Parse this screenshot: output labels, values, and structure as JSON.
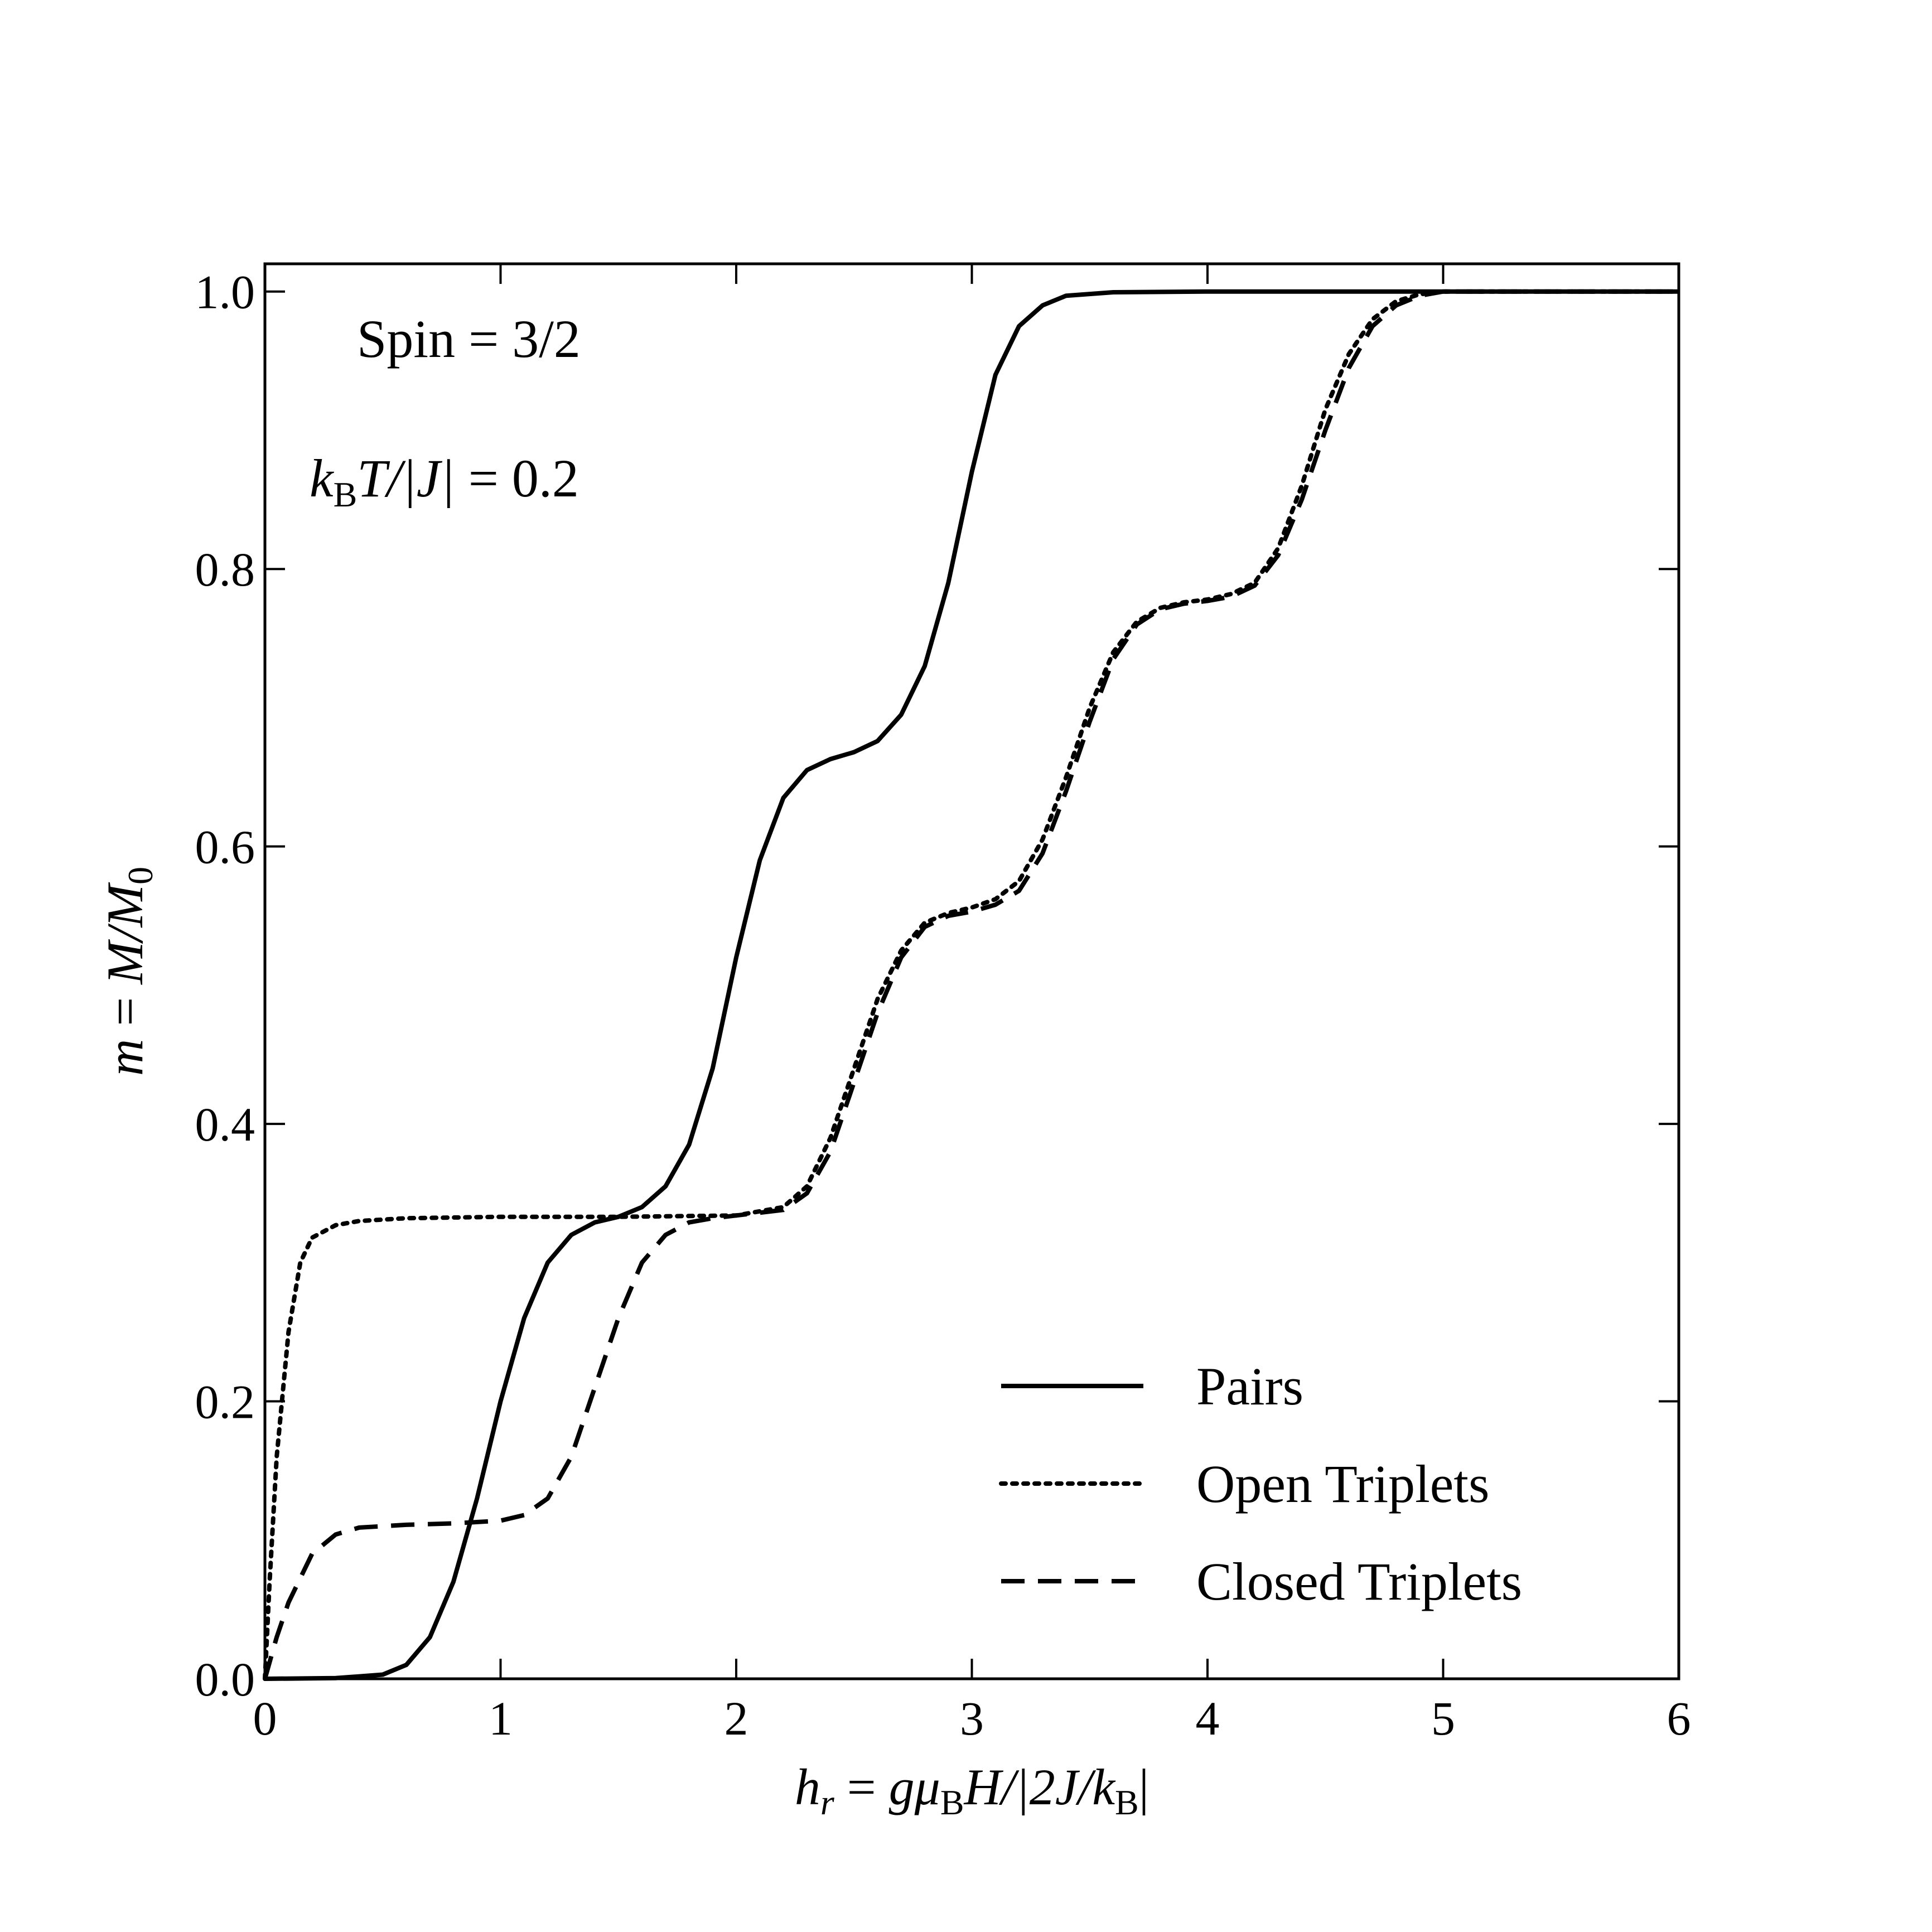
{
  "chart_data": {
    "type": "line",
    "title": "",
    "xlabel": "h_r = gμ_B H/|2J/k_B|",
    "ylabel": "m = M/M_0",
    "xlim": [
      0,
      6
    ],
    "ylim": [
      0,
      1.02
    ],
    "xticks": [
      "0",
      "1",
      "2",
      "3",
      "4",
      "5",
      "6"
    ],
    "yticks": [
      "0.0",
      "0.2",
      "0.4",
      "0.6",
      "0.8",
      "1.0"
    ],
    "grid": false,
    "legend_position": "bottom-right",
    "annotations": [
      "Spin = 3/2",
      "k_B T/|J| = 0.2"
    ],
    "series": [
      {
        "name": "Pairs",
        "style": "solid",
        "x": [
          0,
          0.3,
          0.5,
          0.6,
          0.7,
          0.8,
          0.9,
          1.0,
          1.1,
          1.2,
          1.3,
          1.4,
          1.5,
          1.6,
          1.7,
          1.8,
          1.9,
          2.0,
          2.1,
          2.2,
          2.3,
          2.4,
          2.5,
          2.6,
          2.7,
          2.8,
          2.9,
          3.0,
          3.1,
          3.2,
          3.3,
          3.4,
          3.6,
          4.0,
          5.0,
          6.0
        ],
        "y": [
          0.0,
          0.0005,
          0.003,
          0.01,
          0.03,
          0.07,
          0.13,
          0.2,
          0.26,
          0.3,
          0.32,
          0.329,
          0.333,
          0.34,
          0.355,
          0.385,
          0.44,
          0.52,
          0.59,
          0.635,
          0.655,
          0.663,
          0.668,
          0.676,
          0.695,
          0.73,
          0.79,
          0.87,
          0.94,
          0.975,
          0.99,
          0.997,
          0.9995,
          1.0,
          1.0,
          1.0
        ]
      },
      {
        "name": "Open Triplets",
        "style": "dotted",
        "x": [
          0,
          0.02,
          0.05,
          0.1,
          0.15,
          0.2,
          0.3,
          0.4,
          0.6,
          1.0,
          1.5,
          2.0,
          2.2,
          2.3,
          2.4,
          2.5,
          2.6,
          2.7,
          2.8,
          2.9,
          3.0,
          3.1,
          3.2,
          3.3,
          3.4,
          3.5,
          3.6,
          3.7,
          3.8,
          3.9,
          4.0,
          4.1,
          4.2,
          4.3,
          4.4,
          4.5,
          4.6,
          4.7,
          4.8,
          4.9,
          5.0,
          6.0
        ],
        "y": [
          0.0,
          0.07,
          0.16,
          0.25,
          0.3,
          0.318,
          0.327,
          0.33,
          0.332,
          0.333,
          0.333,
          0.334,
          0.34,
          0.355,
          0.39,
          0.44,
          0.49,
          0.525,
          0.545,
          0.552,
          0.556,
          0.562,
          0.575,
          0.605,
          0.65,
          0.7,
          0.74,
          0.762,
          0.772,
          0.776,
          0.778,
          0.782,
          0.79,
          0.815,
          0.86,
          0.915,
          0.955,
          0.98,
          0.993,
          0.998,
          1.0,
          1.0
        ]
      },
      {
        "name": "Closed Triplets",
        "style": "dashed",
        "x": [
          0,
          0.05,
          0.1,
          0.2,
          0.3,
          0.4,
          0.6,
          0.8,
          1.0,
          1.1,
          1.2,
          1.3,
          1.4,
          1.5,
          1.6,
          1.7,
          1.8,
          1.9,
          2.0,
          2.2,
          2.3,
          2.4,
          2.5,
          2.6,
          2.7,
          2.8,
          2.9,
          3.0,
          3.1,
          3.2,
          3.3,
          3.4,
          3.5,
          3.6,
          3.7,
          3.8,
          3.9,
          4.0,
          4.1,
          4.2,
          4.3,
          4.4,
          4.5,
          4.6,
          4.7,
          4.8,
          4.9,
          5.0,
          5.2,
          6.0
        ],
        "y": [
          0.0,
          0.03,
          0.055,
          0.09,
          0.104,
          0.109,
          0.111,
          0.112,
          0.114,
          0.118,
          0.13,
          0.16,
          0.21,
          0.26,
          0.3,
          0.32,
          0.329,
          0.332,
          0.334,
          0.338,
          0.35,
          0.38,
          0.43,
          0.48,
          0.52,
          0.542,
          0.55,
          0.553,
          0.558,
          0.568,
          0.595,
          0.64,
          0.69,
          0.735,
          0.76,
          0.771,
          0.775,
          0.777,
          0.78,
          0.788,
          0.81,
          0.85,
          0.9,
          0.945,
          0.975,
          0.99,
          0.997,
          1.0,
          1.0,
          1.0
        ]
      }
    ]
  }
}
